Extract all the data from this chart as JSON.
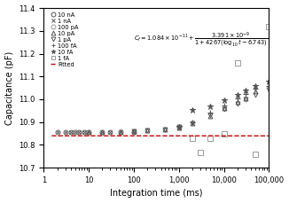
{
  "xlabel": "Integration time (ms)",
  "ylabel": "Capacitance (pF)",
  "xlim_low": 1,
  "xlim_high": 100000,
  "ylim_low": 10.7,
  "ylim_high": 11.4,
  "yticks": [
    10.7,
    10.8,
    10.9,
    11.0,
    11.1,
    11.2,
    11.3,
    11.4
  ],
  "formula_a_pF": 10.84,
  "formula_b_pF": 3.391,
  "formula_c": 4267,
  "formula_d": 6.743,
  "fit_color": "#cc0000",
  "series": {
    "10nA": {
      "marker": "o",
      "mfc": "none",
      "mec": "#555555",
      "ms": 3.5,
      "lw": 0.7,
      "times": [
        2,
        3,
        4,
        5,
        6,
        8,
        10,
        20,
        30,
        50,
        100
      ],
      "caps": [
        10.855,
        10.856,
        10.856,
        10.856,
        10.857,
        10.857,
        10.857,
        10.857,
        10.857,
        10.858,
        10.858
      ]
    },
    "1nA": {
      "marker": "x",
      "mfc": "none",
      "mec": "#555555",
      "ms": 3.5,
      "lw": 0.7,
      "times": [
        2,
        3,
        4,
        5,
        6,
        8,
        10,
        20,
        30,
        50,
        100
      ],
      "caps": [
        10.855,
        10.856,
        10.856,
        10.856,
        10.857,
        10.857,
        10.857,
        10.857,
        10.858,
        10.858,
        10.858
      ]
    },
    "100pA": {
      "marker": "o",
      "mfc": "none",
      "mec": "#999999",
      "ms": 3.5,
      "lw": 0.7,
      "times": [
        2,
        3,
        5,
        10,
        20,
        50,
        100,
        200,
        500,
        1000
      ],
      "caps": [
        10.855,
        10.856,
        10.856,
        10.857,
        10.858,
        10.859,
        10.861,
        10.863,
        10.868,
        10.876
      ]
    },
    "10pA": {
      "marker": "^",
      "mfc": "none",
      "mec": "#555555",
      "ms": 3.5,
      "lw": 0.7,
      "times": [
        10,
        20,
        50,
        100,
        200,
        500,
        1000,
        2000,
        5000,
        10000,
        20000,
        30000,
        50000
      ],
      "caps": [
        10.857,
        10.858,
        10.858,
        10.86,
        10.862,
        10.867,
        10.876,
        10.895,
        10.925,
        10.96,
        10.988,
        11.005,
        11.035
      ]
    },
    "1pA": {
      "marker": "v",
      "mfc": "none",
      "mec": "#555555",
      "ms": 3.5,
      "lw": 0.7,
      "times": [
        100,
        200,
        500,
        1000,
        2000,
        5000,
        10000,
        20000,
        30000,
        50000,
        100000
      ],
      "caps": [
        10.86,
        10.862,
        10.868,
        10.878,
        10.895,
        10.93,
        10.958,
        10.982,
        10.998,
        11.018,
        11.042
      ]
    },
    "100fA": {
      "marker": "+",
      "mfc": "none",
      "mec": "#555555",
      "ms": 4.5,
      "lw": 0.8,
      "times": [
        1000,
        2000,
        5000,
        10000,
        20000,
        30000,
        50000,
        100000
      ],
      "caps": [
        10.88,
        10.9,
        10.942,
        10.972,
        11.002,
        11.022,
        11.045,
        11.06
      ]
    },
    "10fA": {
      "marker": "*",
      "mfc": "#555555",
      "mec": "#555555",
      "ms": 4.5,
      "lw": 0.7,
      "times": [
        1000,
        2000,
        5000,
        10000,
        20000,
        30000,
        50000,
        100000
      ],
      "caps": [
        10.878,
        10.952,
        10.97,
        10.995,
        11.018,
        11.038,
        11.058,
        11.078
      ]
    },
    "1fA": {
      "marker": "s",
      "mfc": "none",
      "mec": "#999999",
      "ms": 4.0,
      "lw": 0.7,
      "times": [
        2000,
        3000,
        5000,
        10000,
        20000,
        50000,
        100000
      ],
      "caps": [
        10.828,
        10.768,
        10.828,
        10.848,
        11.158,
        10.758,
        11.32
      ]
    }
  },
  "legend_markers": [
    "o",
    "x",
    "o",
    "^",
    "v",
    "+",
    "*",
    "s"
  ],
  "legend_mfc": [
    "none",
    "none",
    "none",
    "none",
    "none",
    "none",
    "#555555",
    "none"
  ],
  "legend_mec": [
    "#555555",
    "#555555",
    "#999999",
    "#555555",
    "#555555",
    "#555555",
    "#555555",
    "#999999"
  ],
  "legend_labels": [
    "10 nA",
    "1 nA",
    "100 pA",
    "10 pA",
    "1 pA",
    "100 fA",
    "10 fA",
    "1 fA"
  ],
  "fit_label": "Fitted"
}
